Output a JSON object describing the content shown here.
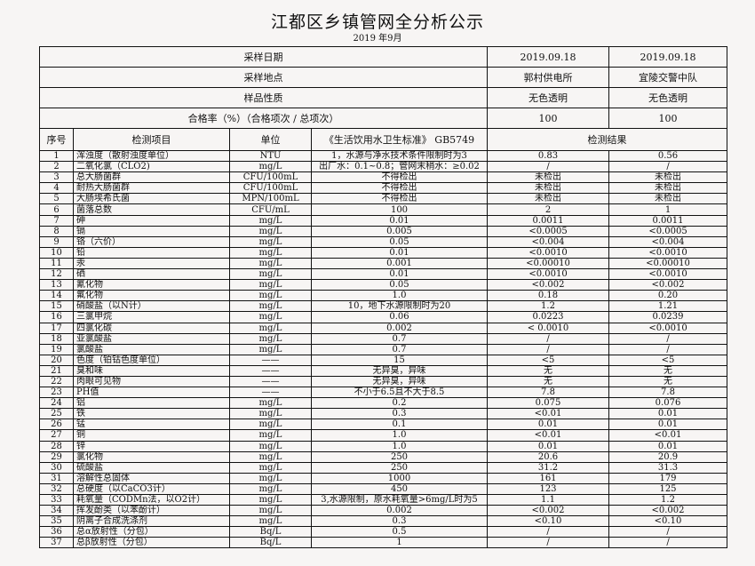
{
  "title": "江都区乡镇管网全分析公示",
  "subtitle": "2019 年9月",
  "meta": [
    {
      "label": "采样日期",
      "v1": "2019.09.18",
      "v2": "2019.09.18"
    },
    {
      "label": "采样地点",
      "v1": "郭村供电所",
      "v2": "宜陵交警中队"
    },
    {
      "label": "样品性质",
      "v1": "无色透明",
      "v2": "无色透明"
    },
    {
      "label": "合格率（%）（合格项次 / 总项次）",
      "v1": "100",
      "v2": "100"
    }
  ],
  "headers": {
    "no": "序号",
    "item": "检测项目",
    "unit": "单位",
    "standard": "《生活饮用水卫生标准》 GB5749",
    "result": "检测结果"
  },
  "rows": [
    [
      "1",
      "浑浊度（散射浊度单位）",
      "NTU",
      "1，水源与净水技术条件限制时为3",
      "0.83",
      "0.56"
    ],
    [
      "2",
      "二氧化氯（CLO2)",
      "mg/L",
      "出厂水：0.1~0.8；管网末稍水：≥0.02",
      "/",
      "/"
    ],
    [
      "3",
      "总大肠菌群",
      "CFU/100mL",
      "不得检出",
      "未检出",
      "未检出"
    ],
    [
      "4",
      "耐热大肠菌群",
      "CFU/100mL",
      "不得检出",
      "未检出",
      "未检出"
    ],
    [
      "5",
      "大肠埃希氏菌",
      "MPN/100mL",
      "不得检出",
      "未检出",
      "未检出"
    ],
    [
      "6",
      "菌落总数",
      "CFU/mL",
      "100",
      "2",
      "1"
    ],
    [
      "7",
      "砷",
      "mg/L",
      "0.01",
      "0.0011",
      "0.0011"
    ],
    [
      "8",
      "镉",
      "mg/L",
      "0.005",
      "<0.0005",
      "<0.0005"
    ],
    [
      "9",
      "铬（六价）",
      "mg/L",
      "0.05",
      "<0.004",
      "<0.004"
    ],
    [
      "10",
      "铅",
      "mg/L",
      "0.01",
      "<0.0010",
      "<0.0010"
    ],
    [
      "11",
      "汞",
      "mg/L",
      "0.001",
      "<0.00010",
      "<0.00010"
    ],
    [
      "12",
      "硒",
      "mg/L",
      "0.01",
      "<0.0010",
      "<0.0010"
    ],
    [
      "13",
      "氰化物",
      "mg/L",
      "0.05",
      "<0.002",
      "<0.002"
    ],
    [
      "14",
      "氟化物",
      "mg/L",
      "1.0",
      "0.18",
      "0.20"
    ],
    [
      "15",
      "硝酸盐（以N计）",
      "mg/L",
      "10，地下水源限制时为20",
      "1.2",
      "1.21"
    ],
    [
      "16",
      "三氯甲烷",
      "mg/L",
      "0.06",
      "0.0223",
      "0.0239"
    ],
    [
      "17",
      "四氯化碳",
      "mg/L",
      "0.002",
      "< 0.0010",
      "<0.0010"
    ],
    [
      "18",
      "亚氯酸盐",
      "mg/L",
      "0.7",
      "/",
      "/"
    ],
    [
      "19",
      "氯酸盐",
      "mg/L",
      "0.7",
      "/",
      "/"
    ],
    [
      "20",
      "色度（铂钴色度单位）",
      "——",
      "15",
      "<5",
      "<5"
    ],
    [
      "21",
      "臭和味",
      "——",
      "无异臭，异味",
      "无",
      "无"
    ],
    [
      "22",
      "肉眼可见物",
      "——",
      "无异臭，异味",
      "无",
      "无"
    ],
    [
      "23",
      "PH值",
      "——",
      "不小于6.5且不大于8.5",
      "7.8",
      "7.8"
    ],
    [
      "24",
      "铝",
      "mg/L",
      "0.2",
      "0.075",
      "0.076"
    ],
    [
      "25",
      "铁",
      "mg/L",
      "0.3",
      "<0.01",
      "0.01"
    ],
    [
      "26",
      "锰",
      "mg/L",
      "0.1",
      "0.01",
      "0.01"
    ],
    [
      "27",
      "铜",
      "mg/L",
      "1.0",
      "<0.01",
      "<0.01"
    ],
    [
      "28",
      "锌",
      "mg/L",
      "1.0",
      "0.01",
      "0.01"
    ],
    [
      "29",
      "氯化物",
      "mg/L",
      "250",
      "20.6",
      "20.9"
    ],
    [
      "30",
      "硫酸盐",
      "mg/L",
      "250",
      "31.2",
      "31.3"
    ],
    [
      "31",
      "溶解性总固体",
      "mg/L",
      "1000",
      "161",
      "179"
    ],
    [
      "32",
      "总硬度（以CaCO3计）",
      "mg/L",
      "450",
      "123",
      "125"
    ],
    [
      "33",
      "耗氧量（CODMn法，以O2计）",
      "mg/L",
      "3,水源限制，原水耗氧量>6mg/L时为5",
      "1.1",
      "1.2"
    ],
    [
      "34",
      "挥发酚类（以苯酚计）",
      "mg/L",
      "0.002",
      "<0.002",
      "<0.002"
    ],
    [
      "35",
      "阴离子合成洗涤剂",
      "mg/L",
      "0.3",
      "<0.10",
      "<0.10"
    ],
    [
      "36",
      "总α放射性（分包）",
      "Bq/L",
      "0.5",
      "/",
      "/"
    ],
    [
      "37",
      "总β放射性（分包）",
      "Bq/L",
      "1",
      "/",
      "/"
    ]
  ]
}
